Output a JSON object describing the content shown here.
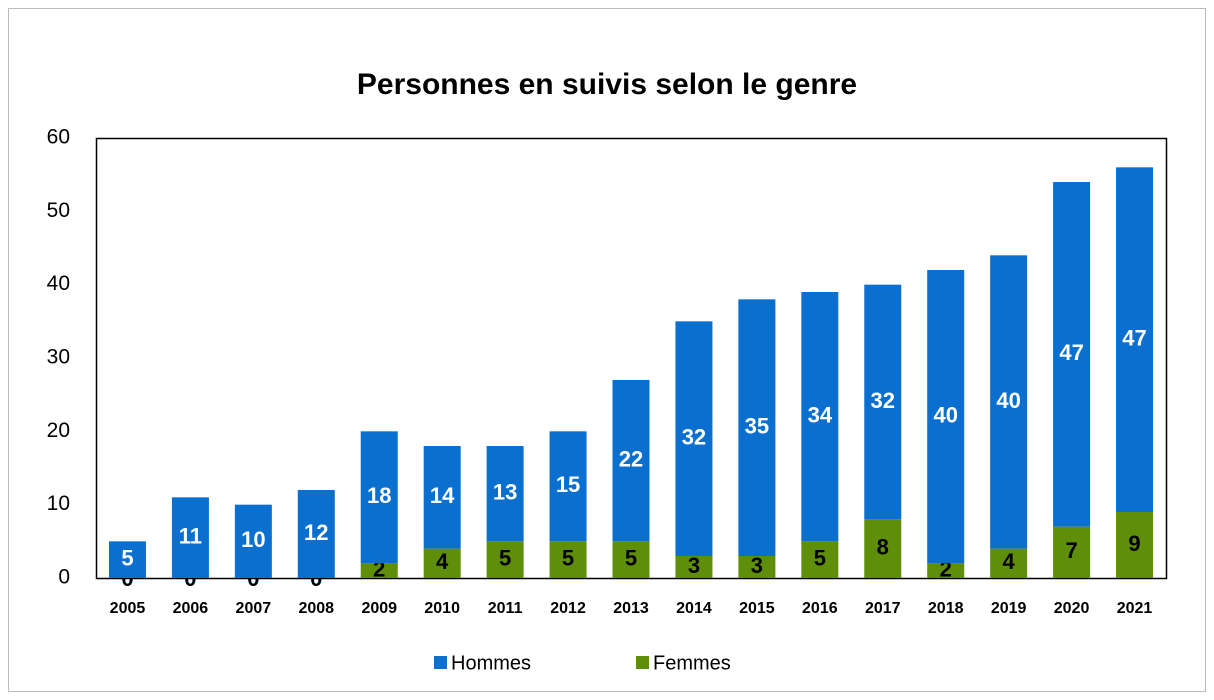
{
  "chart_data": {
    "type": "bar",
    "stacked": true,
    "title": "Personnes en suivis selon le genre",
    "categories": [
      "2005",
      "2006",
      "2007",
      "2008",
      "2009",
      "2010",
      "2011",
      "2012",
      "2013",
      "2014",
      "2015",
      "2016",
      "2017",
      "2018",
      "2019",
      "2020",
      "2021"
    ],
    "series": [
      {
        "name": "Hommes",
        "color": "#0b6fcf",
        "values": [
          5,
          11,
          10,
          12,
          18,
          14,
          13,
          15,
          22,
          32,
          35,
          34,
          32,
          40,
          40,
          47,
          47
        ]
      },
      {
        "name": "Femmes",
        "color": "#5e8e0a",
        "values": [
          0,
          0,
          0,
          0,
          2,
          4,
          5,
          5,
          5,
          3,
          3,
          5,
          8,
          2,
          4,
          7,
          9
        ]
      }
    ],
    "ylim": [
      0,
      60
    ],
    "yticks": [
      0,
      10,
      20,
      30,
      40,
      50,
      60
    ],
    "grid": false,
    "legend": "bottom"
  }
}
